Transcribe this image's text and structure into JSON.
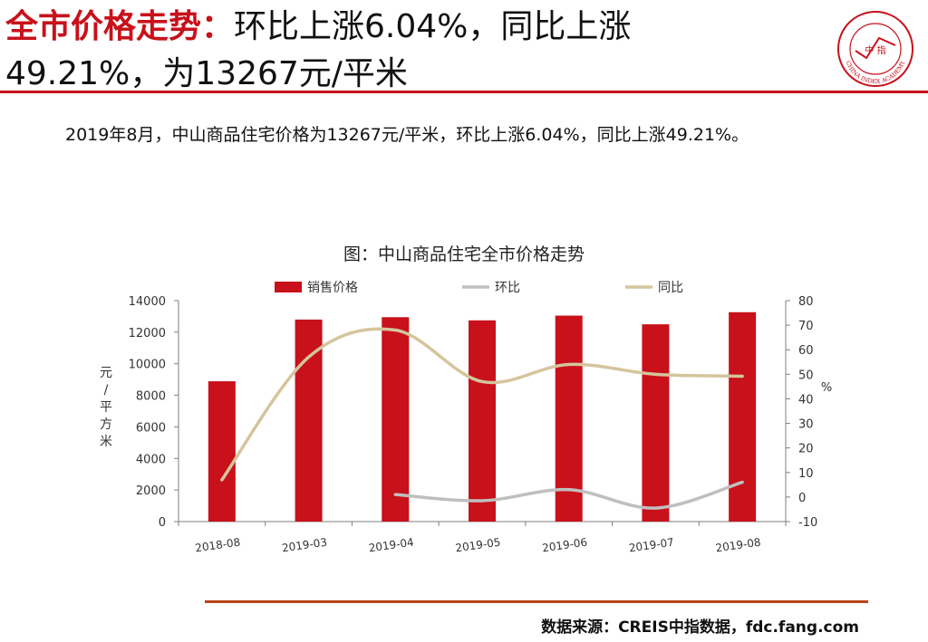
{
  "header": {
    "title_red": "全市价格走势：",
    "title_line1_rest": "环比上涨6.04%，同比上涨",
    "title_line2": "49.21%，为13267元/平米"
  },
  "logo": {
    "icon": "china-index-academy-seal-icon",
    "text": "CHINA INDEX ACADEMY",
    "center_text": "中 指"
  },
  "summary": "2019年8月，中山商品住宅价格为13267元/平米，环比上涨6.04%，同比上涨49.21%。",
  "chart_title": "图：中山商品住宅全市价格走势",
  "colors": {
    "accent": "#c8111a",
    "bar": "#c8111a",
    "mom": "#bfbfbf",
    "yoy": "#d4c59c",
    "axis": "#7f7f7f"
  },
  "chart_data": {
    "type": "bar",
    "categories": [
      "2018-08",
      "2019-03",
      "2019-04",
      "2019-05",
      "2019-06",
      "2019-07",
      "2019-08"
    ],
    "series": [
      {
        "name": "销售价格",
        "type": "bar",
        "axis": "left",
        "values": [
          8890,
          12800,
          12950,
          12750,
          13050,
          12500,
          13267
        ]
      },
      {
        "name": "环比",
        "type": "line",
        "axis": "right",
        "values": [
          null,
          null,
          1.0,
          -1.5,
          3.0,
          -4.5,
          6.04
        ]
      },
      {
        "name": "同比",
        "type": "line",
        "axis": "right",
        "values": [
          7,
          57,
          68,
          47,
          54,
          50,
          49.21
        ]
      }
    ],
    "ylabel_left": "元/平方米",
    "ylabel_right": "%",
    "ylim_left": [
      0,
      14000
    ],
    "yticks_left": [
      0,
      2000,
      4000,
      6000,
      8000,
      10000,
      12000,
      14000
    ],
    "ylim_right": [
      -10,
      80
    ],
    "yticks_right": [
      -10,
      0,
      10,
      20,
      30,
      40,
      50,
      60,
      70,
      80
    ],
    "legend_position": "top",
    "grid": false
  },
  "footer": {
    "source": "数据来源：CREIS中指数据，fdc.fang.com"
  }
}
